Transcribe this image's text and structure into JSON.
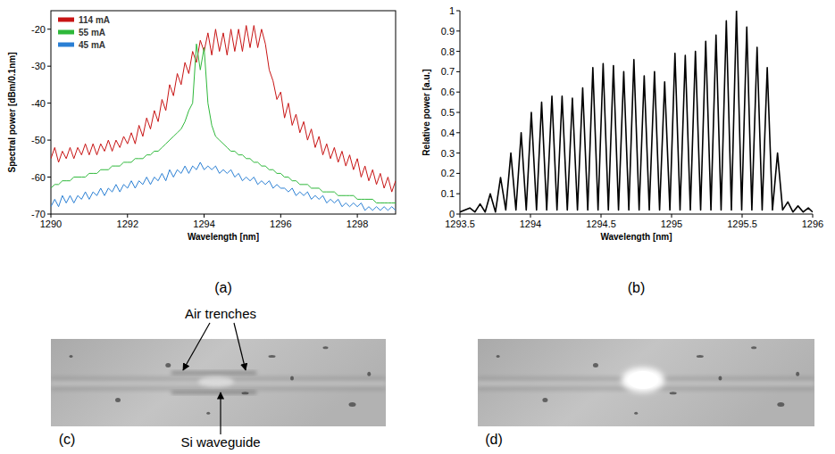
{
  "chart_data": [
    {
      "type": "line",
      "title": "(a)",
      "x_label": "Wavelength [nm]",
      "y_label": "Spectral power [dBm/0.1nm]",
      "xlim": [
        1290,
        1299
      ],
      "ylim": [
        -70,
        -15
      ],
      "xticks": [
        1290,
        1292,
        1294,
        1296,
        1298
      ],
      "yticks": [
        -70,
        -60,
        -50,
        -40,
        -30,
        -20
      ],
      "legend": "top-left",
      "grid": false,
      "x": [
        1290,
        1290.1,
        1290.2,
        1290.3,
        1290.4,
        1290.5,
        1290.6,
        1290.7,
        1290.8,
        1290.9,
        1291,
        1291.1,
        1291.2,
        1291.3,
        1291.4,
        1291.5,
        1291.6,
        1291.7,
        1291.8,
        1291.9,
        1292,
        1292.1,
        1292.2,
        1292.3,
        1292.4,
        1292.5,
        1292.6,
        1292.7,
        1292.8,
        1292.9,
        1293,
        1293.1,
        1293.2,
        1293.3,
        1293.4,
        1293.5,
        1293.6,
        1293.7,
        1293.8,
        1293.9,
        1294,
        1294.1,
        1294.2,
        1294.3,
        1294.4,
        1294.5,
        1294.6,
        1294.7,
        1294.8,
        1294.9,
        1295,
        1295.1,
        1295.2,
        1295.3,
        1295.4,
        1295.5,
        1295.6,
        1295.7,
        1295.8,
        1295.9,
        1296,
        1296.1,
        1296.2,
        1296.3,
        1296.4,
        1296.5,
        1296.6,
        1296.7,
        1296.8,
        1296.9,
        1297,
        1297.1,
        1297.2,
        1297.3,
        1297.4,
        1297.5,
        1297.6,
        1297.7,
        1297.8,
        1297.9,
        1298,
        1298.1,
        1298.2,
        1298.3,
        1298.4,
        1298.5,
        1298.6,
        1298.7,
        1298.8,
        1298.9,
        1299
      ],
      "series": [
        {
          "name": "114 mA",
          "color": "#c81414",
          "values": [
            -55,
            -52,
            -56,
            -53,
            -55,
            -52,
            -55,
            -52,
            -54,
            -51,
            -54,
            -51,
            -54,
            -51,
            -53,
            -50,
            -53,
            -50,
            -52,
            -49,
            -51,
            -48,
            -51,
            -46,
            -49,
            -44,
            -47,
            -42,
            -45,
            -39,
            -42,
            -35,
            -38,
            -32,
            -35,
            -29,
            -32,
            -26,
            -29,
            -23,
            -26,
            -21,
            -27,
            -20,
            -26,
            -21,
            -27,
            -20,
            -26,
            -20,
            -26,
            -19,
            -25,
            -19,
            -25,
            -20,
            -24,
            -31,
            -34,
            -39,
            -37,
            -44,
            -40,
            -46,
            -43,
            -48,
            -45,
            -50,
            -47,
            -52,
            -49,
            -54,
            -51,
            -55,
            -52,
            -56,
            -53,
            -57,
            -54,
            -58,
            -55,
            -60,
            -57,
            -61,
            -58,
            -62,
            -59,
            -63,
            -60,
            -64,
            -61
          ]
        },
        {
          "name": "55 mA",
          "color": "#2eb83a",
          "values": [
            -63,
            -62,
            -62,
            -61,
            -61,
            -61,
            -60,
            -60,
            -60,
            -60,
            -59,
            -59,
            -59,
            -58,
            -58,
            -58,
            -57,
            -57,
            -57,
            -56,
            -56,
            -56,
            -55,
            -55,
            -55,
            -54,
            -54,
            -53,
            -53,
            -52,
            -51,
            -50,
            -49,
            -48,
            -47,
            -45,
            -42,
            -40,
            -24,
            -31,
            -25,
            -40,
            -46,
            -49,
            -50,
            -51,
            -52,
            -53,
            -53,
            -54,
            -54,
            -55,
            -55,
            -56,
            -56,
            -57,
            -57,
            -58,
            -58,
            -59,
            -59,
            -60,
            -60,
            -61,
            -61,
            -62,
            -62,
            -62,
            -63,
            -63,
            -63,
            -64,
            -64,
            -64,
            -64,
            -65,
            -65,
            -65,
            -65,
            -65,
            -66,
            -66,
            -66,
            -66,
            -66,
            -67,
            -67,
            -67,
            -67,
            -67,
            -67
          ]
        },
        {
          "name": "45 mA",
          "color": "#2a7fd4",
          "values": [
            -68,
            -66,
            -68,
            -65,
            -67,
            -65,
            -67,
            -65,
            -66,
            -64,
            -66,
            -64,
            -65,
            -63,
            -65,
            -63,
            -64,
            -62,
            -64,
            -62,
            -63,
            -61,
            -63,
            -61,
            -62,
            -60,
            -62,
            -60,
            -61,
            -59,
            -61,
            -58,
            -60,
            -58,
            -59,
            -57,
            -59,
            -57,
            -58,
            -56,
            -58,
            -57,
            -58,
            -57,
            -59,
            -58,
            -59,
            -58,
            -60,
            -59,
            -61,
            -60,
            -61,
            -60,
            -62,
            -61,
            -62,
            -61,
            -63,
            -62,
            -63,
            -63,
            -64,
            -63,
            -65,
            -64,
            -65,
            -64,
            -66,
            -65,
            -66,
            -65,
            -67,
            -66,
            -67,
            -66,
            -68,
            -67,
            -68,
            -67,
            -68,
            -67,
            -69,
            -68,
            -69,
            -68,
            -69,
            -68,
            -69,
            -68,
            -69
          ]
        }
      ]
    },
    {
      "type": "line",
      "title": "(b)",
      "x_label": "Wavelength [nm]",
      "y_label": "Relative power [a.u.]",
      "xlim": [
        1293.5,
        1296
      ],
      "ylim": [
        0,
        1
      ],
      "xticks": [
        1293.5,
        1294,
        1294.5,
        1295,
        1295.5,
        1296
      ],
      "yticks": [
        0,
        0.1,
        0.2,
        0.3,
        0.4,
        0.5,
        0.6,
        0.7,
        0.8,
        0.9,
        1
      ],
      "grid": false,
      "x": [
        1293.5,
        1293.57,
        1293.606,
        1293.643,
        1293.679,
        1293.715,
        1293.752,
        1293.788,
        1293.825,
        1293.861,
        1293.897,
        1293.934,
        1293.97,
        1294.006,
        1294.043,
        1294.079,
        1294.115,
        1294.152,
        1294.188,
        1294.224,
        1294.261,
        1294.297,
        1294.333,
        1294.37,
        1294.406,
        1294.442,
        1294.479,
        1294.515,
        1294.552,
        1294.588,
        1294.624,
        1294.661,
        1294.697,
        1294.733,
        1294.77,
        1294.806,
        1294.842,
        1294.879,
        1294.915,
        1294.951,
        1294.988,
        1295.024,
        1295.06,
        1295.097,
        1295.133,
        1295.169,
        1295.206,
        1295.242,
        1295.279,
        1295.315,
        1295.351,
        1295.388,
        1295.424,
        1295.46,
        1295.497,
        1295.533,
        1295.569,
        1295.606,
        1295.642,
        1295.678,
        1295.715,
        1295.751,
        1295.787,
        1295.824,
        1295.86,
        1295.896,
        1295.933,
        1295.969,
        1296
      ],
      "series": [
        {
          "color": "#000000",
          "values": [
            0.01,
            0.03,
            0.01,
            0.05,
            0.01,
            0.1,
            0.01,
            0.18,
            0.02,
            0.3,
            0.02,
            0.4,
            0.02,
            0.5,
            0.02,
            0.55,
            0.02,
            0.58,
            0.02,
            0.58,
            0.02,
            0.57,
            0.02,
            0.62,
            0.02,
            0.72,
            0.02,
            0.74,
            0.02,
            0.73,
            0.02,
            0.7,
            0.02,
            0.76,
            0.02,
            0.68,
            0.02,
            0.7,
            0.02,
            0.65,
            0.02,
            0.79,
            0.02,
            0.78,
            0.02,
            0.8,
            0.02,
            0.85,
            0.02,
            0.88,
            0.02,
            0.95,
            0.02,
            1,
            0.02,
            0.92,
            0.02,
            0.82,
            0.02,
            0.72,
            0.02,
            0.3,
            0.02,
            0.06,
            0.01,
            0.04,
            0.01,
            0.03,
            0.01
          ]
        }
      ]
    }
  ],
  "images": [
    {
      "label": "(c)",
      "annotations": [
        "Air trenches",
        "Si waveguide"
      ]
    },
    {
      "label": "(d)",
      "annotations": []
    }
  ]
}
